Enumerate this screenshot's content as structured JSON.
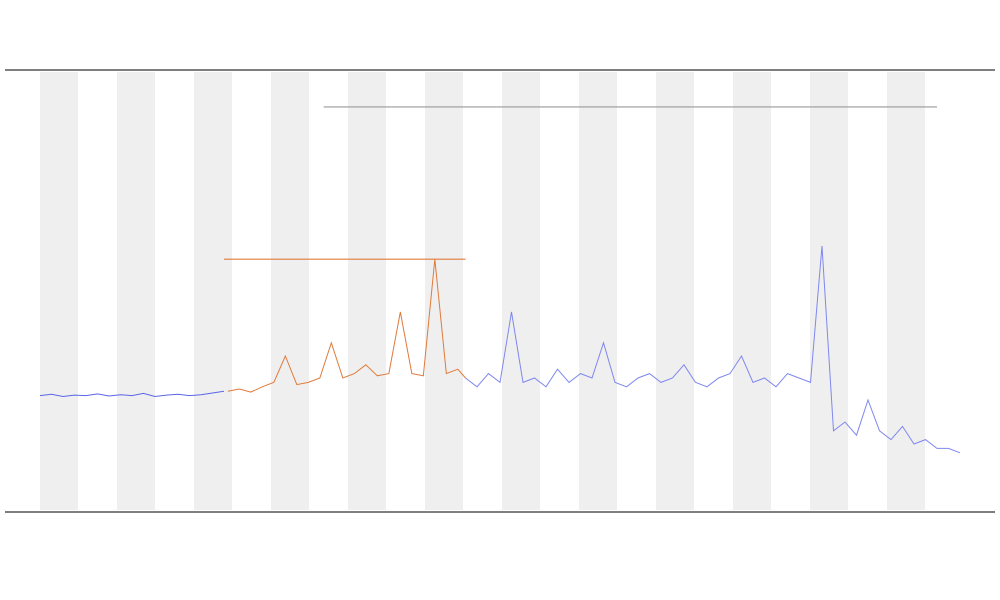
{
  "chart_data": {
    "type": "line",
    "xlim": [
      0,
      240
    ],
    "ylim": [
      0,
      100
    ],
    "series": [
      {
        "color": "#5a66e6",
        "x": [
          0,
          3,
          6,
          9,
          12,
          15,
          18,
          21,
          24,
          27,
          30,
          33,
          36,
          39,
          42,
          45,
          48
        ],
        "values": [
          26,
          26.3,
          25.8,
          26.1,
          26,
          26.4,
          25.9,
          26.2,
          26,
          26.5,
          25.8,
          26.1,
          26.3,
          26,
          26.2,
          26.6,
          27
        ]
      },
      {
        "color": "#e07a3a",
        "x": [
          49,
          52,
          55,
          58,
          61,
          64,
          67,
          70,
          73,
          76,
          79,
          82,
          85,
          88,
          91,
          94,
          97,
          100,
          103,
          106,
          109,
          111
        ],
        "values": [
          27,
          27.5,
          26.8,
          28,
          29,
          35,
          28.5,
          29,
          30,
          38,
          30,
          31,
          33,
          30.5,
          31,
          45,
          31,
          30.5,
          57,
          31,
          32,
          30
        ]
      },
      {
        "color": "#7f87ee",
        "x": [
          111,
          114,
          117,
          120,
          123,
          126,
          129,
          132,
          135,
          138,
          141,
          144,
          147,
          150,
          153,
          156,
          159,
          162,
          165,
          168,
          171,
          174,
          177,
          180,
          183,
          186,
          189,
          192,
          195,
          198,
          201,
          204,
          207,
          210,
          213,
          216,
          219,
          222,
          225,
          228,
          231,
          234,
          237,
          240
        ],
        "values": [
          30,
          28,
          31,
          29,
          45,
          29,
          30,
          28,
          32,
          29,
          31,
          30,
          38,
          29,
          28,
          30,
          31,
          29,
          30,
          33,
          29,
          28,
          30,
          31,
          35,
          29,
          30,
          28,
          31,
          30,
          29,
          60,
          18,
          20,
          17,
          25,
          18,
          16,
          19,
          15,
          16,
          14,
          14,
          13
        ]
      }
    ],
    "hlines": [
      {
        "value": 57,
        "xmin": 48,
        "xmax": 111,
        "color": "#e07a3a"
      },
      {
        "value": 91.6,
        "xmin": 74,
        "xmax": 234,
        "color": "#999999"
      }
    ]
  }
}
